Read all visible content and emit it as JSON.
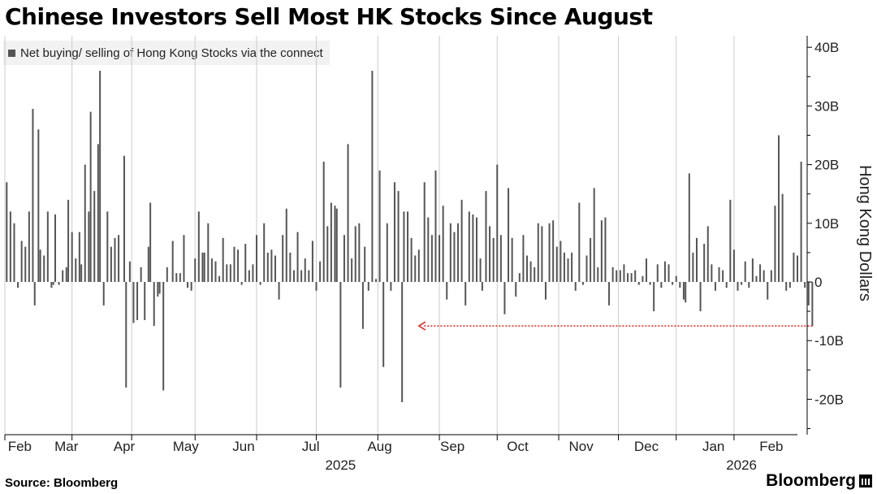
{
  "title": "Chinese Investors Sell Most HK Stocks Since August",
  "legend": "Net buying/ selling of Hong Kong Stocks via the connect",
  "source": "Source: Bloomberg",
  "brand": "Bloomberg",
  "colors": {
    "bar": "#555555",
    "axis": "#000000",
    "grid": "#cccccc",
    "annotation": "#e0302a"
  },
  "chart_data": {
    "type": "bar",
    "title": "Chinese Investors Sell Most HK Stocks Since August",
    "ylabel": "Hong Kong Dollars",
    "unit": "billion HKD",
    "ylim": [
      -25,
      40
    ],
    "y_ticks": [
      40,
      30,
      20,
      10,
      0,
      -10,
      -20
    ],
    "y_tick_labels": [
      "40B",
      "30B",
      "20B",
      "10B",
      "0",
      "-10B",
      "-20B"
    ],
    "x_ticks": [
      0,
      36,
      68,
      102,
      135,
      167,
      200,
      233,
      264,
      297,
      329,
      360,
      391
    ],
    "month_labels": [
      "Feb",
      "Mar",
      "Apr",
      "May",
      "Jun",
      "Jul",
      "Aug",
      "Sep",
      "Oct",
      "Nov",
      "Dec",
      "Jan",
      "Feb"
    ],
    "month_label_pos": [
      8,
      33,
      64,
      97,
      128,
      164,
      201,
      240,
      275,
      309,
      344,
      380,
      411
    ],
    "year_labels": [
      "2025",
      "2026"
    ],
    "year_label_pos": [
      180,
      395
    ],
    "x_range": [
      0,
      425
    ],
    "series": [
      {
        "name": "Net buying/ selling of Hong Kong Stocks via the connect",
        "points": [
          [
            1,
            17
          ],
          [
            3,
            12
          ],
          [
            5,
            10
          ],
          [
            7,
            -1
          ],
          [
            9,
            7
          ],
          [
            11,
            6
          ],
          [
            13,
            12
          ],
          [
            15,
            29.5
          ],
          [
            16,
            -4
          ],
          [
            18,
            26
          ],
          [
            19,
            5.5
          ],
          [
            21,
            4.5
          ],
          [
            23,
            12
          ],
          [
            25,
            -1
          ],
          [
            26,
            -0.5
          ],
          [
            27,
            11.5
          ],
          [
            29,
            -0.5
          ],
          [
            31,
            2
          ],
          [
            33,
            2.5
          ],
          [
            34,
            14
          ],
          [
            36,
            8.5
          ],
          [
            38,
            4
          ],
          [
            40,
            8.5
          ],
          [
            41,
            3
          ],
          [
            43,
            20
          ],
          [
            45,
            12
          ],
          [
            46,
            29
          ],
          [
            48,
            15.5
          ],
          [
            50,
            23.5
          ],
          [
            51,
            36
          ],
          [
            53,
            -4
          ],
          [
            55,
            12
          ],
          [
            57,
            6
          ],
          [
            59,
            7.5
          ],
          [
            61,
            8
          ],
          [
            64,
            21.5
          ],
          [
            65,
            -18
          ],
          [
            67,
            3.5
          ],
          [
            69,
            -7
          ],
          [
            71,
            -6.5
          ],
          [
            73,
            2.5
          ],
          [
            75,
            -6.5
          ],
          [
            77,
            6
          ],
          [
            78,
            13.5
          ],
          [
            80,
            -7.5
          ],
          [
            82,
            -2.5
          ],
          [
            83,
            -2
          ],
          [
            85,
            -18.5
          ],
          [
            87,
            2.5
          ],
          [
            90,
            7
          ],
          [
            92,
            1.5
          ],
          [
            94,
            1.5
          ],
          [
            96,
            8
          ],
          [
            98,
            -1
          ],
          [
            100,
            -1.5
          ],
          [
            102,
            4
          ],
          [
            104,
            12
          ],
          [
            106,
            5
          ],
          [
            107,
            5
          ],
          [
            109,
            10
          ],
          [
            111,
            4
          ],
          [
            113,
            3.5
          ],
          [
            115,
            1
          ],
          [
            117,
            7.5
          ],
          [
            119,
            3
          ],
          [
            121,
            3
          ],
          [
            123,
            6
          ],
          [
            125,
            5.5
          ],
          [
            127,
            -0.5
          ],
          [
            129,
            6.5
          ],
          [
            131,
            2
          ],
          [
            133,
            3
          ],
          [
            135,
            8
          ],
          [
            137,
            -0.5
          ],
          [
            139,
            10
          ],
          [
            141,
            5
          ],
          [
            143,
            5.5
          ],
          [
            145,
            4.5
          ],
          [
            147,
            -3
          ],
          [
            149,
            8
          ],
          [
            151,
            12.5
          ],
          [
            153,
            5
          ],
          [
            155,
            2
          ],
          [
            157,
            8.5
          ],
          [
            159,
            2
          ],
          [
            161,
            4
          ],
          [
            163,
            2
          ],
          [
            165,
            7
          ],
          [
            167,
            -1.5
          ],
          [
            169,
            3.5
          ],
          [
            171,
            20.5
          ],
          [
            173,
            9.5
          ],
          [
            175,
            13.5
          ],
          [
            177,
            13
          ],
          [
            178,
            12.5
          ],
          [
            180,
            -18
          ],
          [
            182,
            8
          ],
          [
            184,
            23.5
          ],
          [
            186,
            4
          ],
          [
            188,
            9.5
          ],
          [
            190,
            10
          ],
          [
            192,
            -8
          ],
          [
            193,
            6
          ],
          [
            195,
            -1.5
          ],
          [
            197,
            36
          ],
          [
            199,
            0.5
          ],
          [
            201,
            19
          ],
          [
            203,
            -14.5
          ],
          [
            205,
            10
          ],
          [
            207,
            -1.5
          ],
          [
            209,
            17
          ],
          [
            211,
            15.5
          ],
          [
            213,
            -20.5
          ],
          [
            214,
            12
          ],
          [
            216,
            12
          ],
          [
            218,
            7.5
          ],
          [
            220,
            4.5
          ],
          [
            222,
            5.5
          ],
          [
            225,
            17
          ],
          [
            227,
            11
          ],
          [
            229,
            8
          ],
          [
            231,
            19
          ],
          [
            233,
            8
          ],
          [
            235,
            13
          ],
          [
            237,
            -3
          ],
          [
            239,
            10
          ],
          [
            241,
            8.5
          ],
          [
            243,
            10
          ],
          [
            245,
            14
          ],
          [
            247,
            -4
          ],
          [
            249,
            12
          ],
          [
            251,
            11.5
          ],
          [
            253,
            11
          ],
          [
            255,
            4
          ],
          [
            256,
            -1.5
          ],
          [
            258,
            15.5
          ],
          [
            260,
            9.5
          ],
          [
            262,
            7.5
          ],
          [
            264,
            20
          ],
          [
            266,
            8
          ],
          [
            268,
            -5.5
          ],
          [
            270,
            16
          ],
          [
            272,
            7.5
          ],
          [
            274,
            -2.5
          ],
          [
            276,
            1.5
          ],
          [
            278,
            8
          ],
          [
            280,
            4.5
          ],
          [
            282,
            3.5
          ],
          [
            284,
            2.5
          ],
          [
            286,
            10
          ],
          [
            288,
            9.5
          ],
          [
            290,
            -3
          ],
          [
            292,
            10
          ],
          [
            294,
            10.5
          ],
          [
            296,
            6
          ],
          [
            298,
            7
          ],
          [
            300,
            5
          ],
          [
            302,
            4
          ],
          [
            304,
            5
          ],
          [
            306,
            -1.5
          ],
          [
            308,
            13.5
          ],
          [
            310,
            -0.5
          ],
          [
            312,
            4.5
          ],
          [
            314,
            7.5
          ],
          [
            316,
            16
          ],
          [
            318,
            2.5
          ],
          [
            320,
            10.5
          ],
          [
            322,
            11
          ],
          [
            324,
            -4
          ],
          [
            326,
            2.5
          ],
          [
            328,
            2
          ],
          [
            330,
            2
          ],
          [
            332,
            3
          ],
          [
            334,
            1.5
          ],
          [
            336,
            1.5
          ],
          [
            338,
            2
          ],
          [
            340,
            -0.5
          ],
          [
            342,
            1
          ],
          [
            344,
            4
          ],
          [
            346,
            -0.5
          ],
          [
            348,
            -5
          ],
          [
            350,
            3
          ],
          [
            352,
            -1
          ],
          [
            354,
            3.5
          ],
          [
            356,
            3
          ],
          [
            358,
            -0.5
          ],
          [
            360,
            1
          ],
          [
            362,
            -1
          ],
          [
            364,
            -3
          ],
          [
            365,
            -3.5
          ],
          [
            367,
            18.5
          ],
          [
            369,
            5
          ],
          [
            371,
            7.5
          ],
          [
            373,
            -5
          ],
          [
            375,
            6.5
          ],
          [
            377,
            9.5
          ],
          [
            379,
            3
          ],
          [
            381,
            -1.5
          ],
          [
            383,
            2.5
          ],
          [
            385,
            2
          ],
          [
            387,
            -1
          ],
          [
            389,
            14
          ],
          [
            391,
            5.5
          ],
          [
            393,
            -1.5
          ],
          [
            395,
            -0.5
          ],
          [
            397,
            3.5
          ],
          [
            399,
            -1
          ],
          [
            401,
            4
          ],
          [
            403,
            1
          ],
          [
            405,
            3
          ],
          [
            407,
            2
          ],
          [
            409,
            -3
          ],
          [
            411,
            2
          ],
          [
            413,
            13
          ],
          [
            415,
            25
          ],
          [
            417,
            15
          ],
          [
            419,
            -1.5
          ],
          [
            421,
            -1
          ],
          [
            423,
            5
          ],
          [
            425,
            4.5
          ],
          [
            427,
            20.5
          ],
          [
            429,
            -1
          ],
          [
            431,
            -4
          ],
          [
            433,
            -7.5
          ]
        ]
      }
    ],
    "annotation": {
      "type": "dotted-arrow",
      "from_index": 433,
      "to_index": 222,
      "value": -7.5
    }
  }
}
